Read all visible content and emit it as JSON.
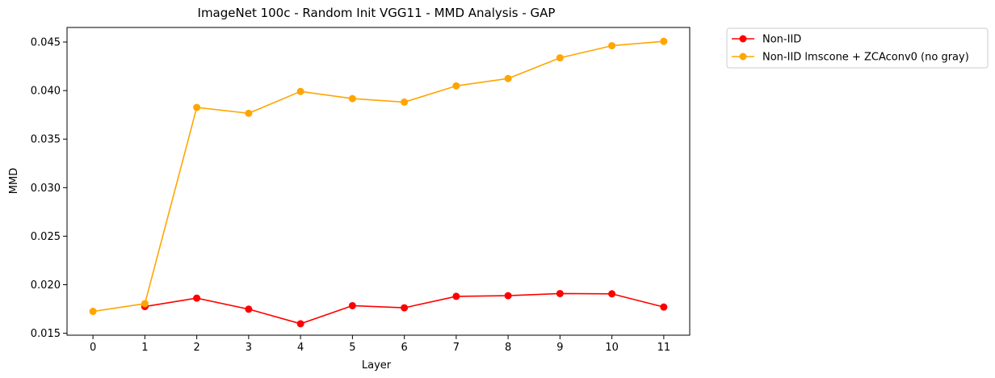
{
  "chart_data": {
    "type": "line",
    "title": "ImageNet 100c - Random Init VGG11 - MMD Analysis - GAP",
    "xlabel": "Layer",
    "ylabel": "MMD",
    "x_ticks": [
      "0",
      "1",
      "2",
      "3",
      "4",
      "5",
      "6",
      "7",
      "8",
      "9",
      "10",
      "11"
    ],
    "y_ticks": [
      "0.015",
      "0.020",
      "0.025",
      "0.030",
      "0.035",
      "0.040",
      "0.045"
    ],
    "xlim": [
      -0.5,
      11.5
    ],
    "ylim": [
      0.0148,
      0.0465
    ],
    "grid": false,
    "legend_position": "outside-top-right",
    "series": [
      {
        "name": "Non-IID",
        "color": "#ff0000",
        "x": [
          1,
          2,
          3,
          4,
          5,
          6,
          7,
          8,
          9,
          10,
          11
        ],
        "values": [
          0.01775,
          0.01862,
          0.01748,
          0.01598,
          0.01784,
          0.01762,
          0.0188,
          0.01887,
          0.01909,
          0.01906,
          0.0177
        ]
      },
      {
        "name": "Non-IID lmscone + ZCAconv0 (no gray)",
        "color": "#ffa500",
        "x": [
          0,
          1,
          2,
          3,
          4,
          5,
          6,
          7,
          8,
          9,
          10,
          11
        ],
        "values": [
          0.01725,
          0.01805,
          0.03826,
          0.03766,
          0.03991,
          0.03917,
          0.03881,
          0.04048,
          0.04124,
          0.04337,
          0.04462,
          0.04507
        ]
      }
    ]
  }
}
